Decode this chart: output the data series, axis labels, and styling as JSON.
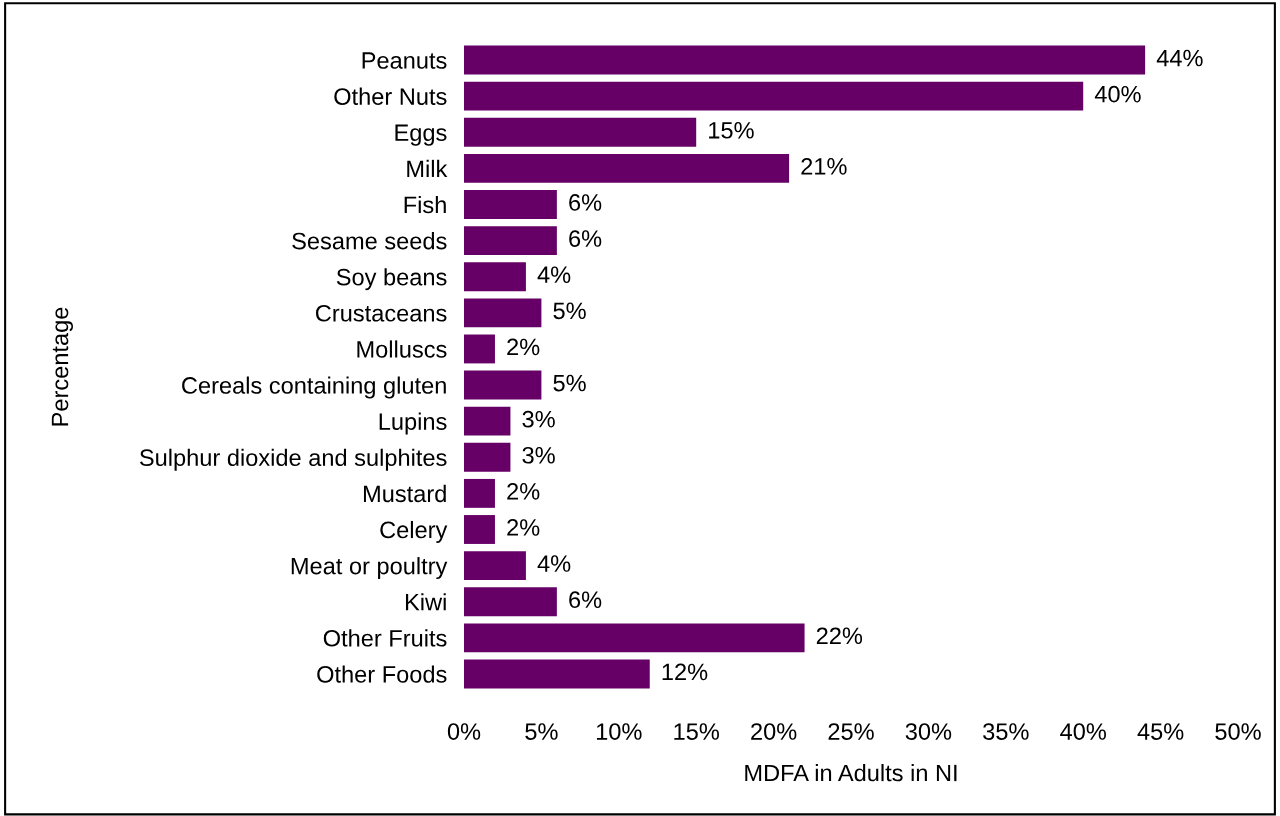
{
  "chart_data": {
    "type": "bar",
    "orientation": "horizontal",
    "xlabel": "MDFA in Adults in NI",
    "ylabel": "Percentage",
    "categories": [
      "Peanuts",
      "Other Nuts",
      "Eggs",
      "Milk",
      "Fish",
      "Sesame seeds",
      "Soy beans",
      "Crustaceans",
      "Molluscs",
      "Cereals containing gluten",
      "Lupins",
      "Sulphur dioxide and sulphites",
      "Mustard",
      "Celery",
      "Meat or poultry",
      "Kiwi",
      "Other Fruits",
      "Other Foods"
    ],
    "values": [
      44,
      40,
      15,
      21,
      6,
      6,
      4,
      5,
      2,
      5,
      3,
      3,
      2,
      2,
      4,
      6,
      22,
      12
    ],
    "value_labels": [
      "44%",
      "40%",
      "15%",
      "21%",
      "6%",
      "6%",
      "4%",
      "5%",
      "2%",
      "5%",
      "3%",
      "3%",
      "2%",
      "2%",
      "4%",
      "6%",
      "22%",
      "12%"
    ],
    "color": "#660066",
    "xlim": [
      0,
      50
    ],
    "xticks": [
      {
        "value": 0,
        "label": "0%"
      },
      {
        "value": 5,
        "label": "5%"
      },
      {
        "value": 10,
        "label": "10%"
      },
      {
        "value": 15,
        "label": "15%"
      },
      {
        "value": 20,
        "label": "20%"
      },
      {
        "value": 25,
        "label": "25%"
      },
      {
        "value": 30,
        "label": "30%"
      },
      {
        "value": 35,
        "label": "35%"
      },
      {
        "value": 40,
        "label": "40%"
      },
      {
        "value": 45,
        "label": "45%"
      },
      {
        "value": 50,
        "label": "50%"
      }
    ],
    "grid": false,
    "legend": false
  }
}
